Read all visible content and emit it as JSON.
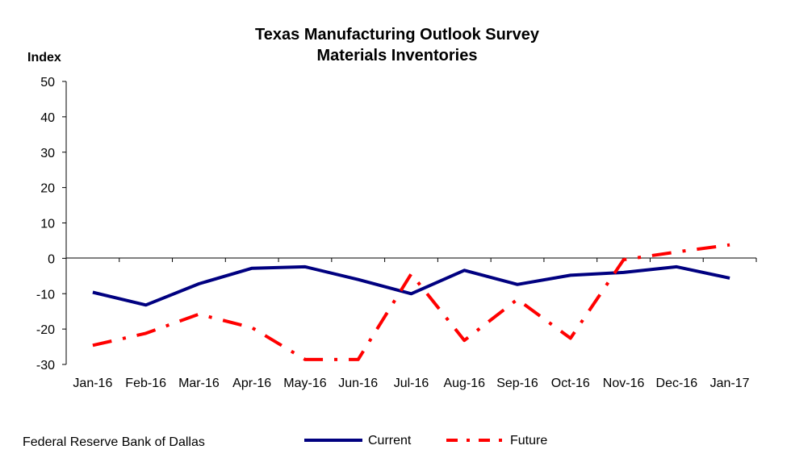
{
  "chart_data": {
    "type": "line",
    "title": [
      "Texas Manufacturing Outlook Survey",
      "Materials Inventories"
    ],
    "ylabel": "Index",
    "xlabel": "",
    "ylim": [
      -30,
      50
    ],
    "yticks": [
      50,
      40,
      30,
      20,
      10,
      0,
      -10,
      -20,
      -30
    ],
    "categories": [
      "Jan-16",
      "Feb-16",
      "Mar-16",
      "Apr-16",
      "May-16",
      "Jun-16",
      "Jul-16",
      "Aug-16",
      "Sep-16",
      "Oct-16",
      "Nov-16",
      "Dec-16",
      "Jan-17"
    ],
    "series": [
      {
        "name": "Current",
        "color": "#000080",
        "style": "solid",
        "values": [
          -9.6,
          -13.2,
          -7.2,
          -2.8,
          -2.4,
          -6.0,
          -10.0,
          -3.4,
          -7.4,
          -4.8,
          -4.0,
          -2.4,
          -5.6
        ]
      },
      {
        "name": "Future",
        "color": "#ff0000",
        "style": "dash-dot",
        "values": [
          -24.6,
          -21.2,
          -15.8,
          -19.6,
          -28.6,
          -28.6,
          -4.4,
          -23.2,
          -11.6,
          -22.6,
          -0.4,
          1.8,
          3.8
        ]
      }
    ],
    "grid": false,
    "legend": "bottom"
  },
  "source_note": "Federal Reserve Bank of Dallas"
}
